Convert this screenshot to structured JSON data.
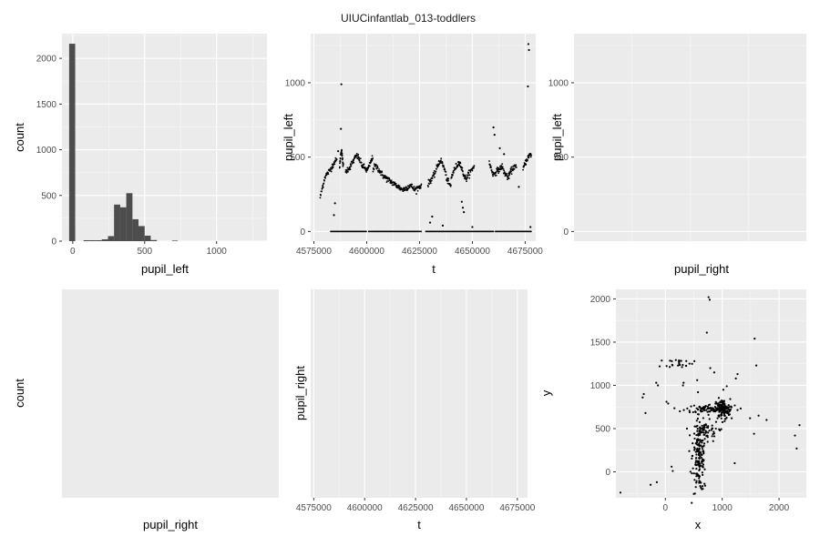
{
  "figure": {
    "title": "UIUCinfantlab_013-toddlers"
  },
  "colors": {
    "panel_bg": "#ebebeb",
    "grid_major": "#ffffff",
    "bar": "#4d4d4d",
    "point": "#000000"
  },
  "chart_data": [
    {
      "id": "hist-pupil-left",
      "type": "bar",
      "xlabel": "pupil_left",
      "ylabel": "count",
      "xlim": [
        -75,
        1350
      ],
      "ylim": [
        0,
        2270
      ],
      "xticks": [
        0,
        500,
        1000
      ],
      "yticks": [
        0,
        500,
        1000,
        1500,
        2000
      ],
      "bins": [
        {
          "x0": -25,
          "x1": 17,
          "count": 2160
        },
        {
          "x0": 75,
          "x1": 117,
          "count": 10
        },
        {
          "x0": 117,
          "x1": 160,
          "count": 10
        },
        {
          "x0": 160,
          "x1": 202,
          "count": 10
        },
        {
          "x0": 202,
          "x1": 245,
          "count": 20
        },
        {
          "x0": 245,
          "x1": 287,
          "count": 55
        },
        {
          "x0": 287,
          "x1": 330,
          "count": 400
        },
        {
          "x0": 330,
          "x1": 372,
          "count": 370
        },
        {
          "x0": 372,
          "x1": 415,
          "count": 525
        },
        {
          "x0": 415,
          "x1": 457,
          "count": 240
        },
        {
          "x0": 457,
          "x1": 500,
          "count": 165
        },
        {
          "x0": 500,
          "x1": 542,
          "count": 60
        },
        {
          "x0": 542,
          "x1": 585,
          "count": 12
        },
        {
          "x0": 690,
          "x1": 730,
          "count": 6
        }
      ]
    },
    {
      "id": "scatter-t-pupil-left",
      "type": "scatter",
      "xlabel": "t",
      "ylabel": "pupil_left",
      "xlim": [
        4573500,
        4680000
      ],
      "ylim": [
        -65,
        1330
      ],
      "xticks": [
        4575000,
        4600000,
        4625000,
        4650000,
        4675000
      ],
      "yticks": [
        0,
        500,
        1000
      ],
      "segments": [
        {
          "t0": 4578000,
          "t1": 4586000,
          "values": [
            230,
            300,
            370,
            390,
            410,
            440,
            470,
            480
          ]
        },
        {
          "t0": 4587200,
          "t1": 4589000,
          "values": [
            440,
            500,
            560,
            480,
            430
          ]
        },
        {
          "t0": 4590000,
          "t1": 4603000,
          "values": [
            400,
            420,
            430,
            460,
            480,
            510,
            500,
            470,
            440,
            430,
            410,
            430,
            470,
            500
          ]
        },
        {
          "t0": 4603000,
          "t1": 4615000,
          "values": [
            420,
            440,
            430,
            410,
            390,
            370,
            360,
            350,
            340,
            330,
            320,
            310,
            300
          ]
        },
        {
          "t0": 4615000,
          "t1": 4626000,
          "values": [
            300,
            290,
            280,
            290,
            300,
            310,
            300,
            280,
            290,
            300,
            310
          ]
        },
        {
          "t0": 4629000,
          "t1": 4640000,
          "values": [
            320,
            340,
            360,
            380,
            420,
            460,
            480,
            450,
            410,
            350,
            320,
            300
          ]
        },
        {
          "t0": 4640000,
          "t1": 4651000,
          "values": [
            360,
            400,
            430,
            450,
            470,
            420,
            380,
            350,
            380,
            400,
            420,
            450
          ]
        },
        {
          "t0": 4658000,
          "t1": 4671000,
          "values": [
            460,
            420,
            380,
            400,
            410,
            420,
            440,
            400,
            380,
            360,
            400,
            420,
            440,
            420
          ]
        },
        {
          "t0": 4674000,
          "t1": 4678000,
          "values": [
            420,
            460,
            490,
            510,
            520
          ]
        }
      ],
      "points": [
        {
          "t": 4585000,
          "v": 190
        },
        {
          "t": 4584500,
          "v": 110
        },
        {
          "t": 4588000,
          "v": 990
        },
        {
          "t": 4587800,
          "v": 690
        },
        {
          "t": 4586500,
          "v": 540
        },
        {
          "t": 4630000,
          "v": 60
        },
        {
          "t": 4631000,
          "v": 100
        },
        {
          "t": 4636000,
          "v": 40
        },
        {
          "t": 4645000,
          "v": 200
        },
        {
          "t": 4645500,
          "v": 160
        },
        {
          "t": 4646000,
          "v": 130
        },
        {
          "t": 4650000,
          "v": 30
        },
        {
          "t": 4660000,
          "v": 700
        },
        {
          "t": 4660500,
          "v": 650
        },
        {
          "t": 4663000,
          "v": 560
        },
        {
          "t": 4665000,
          "v": 520
        },
        {
          "t": 4676500,
          "v": 1260
        },
        {
          "t": 4676800,
          "v": 1220
        },
        {
          "t": 4676300,
          "v": 975
        },
        {
          "t": 4677500,
          "v": 30
        },
        {
          "t": 4672000,
          "v": 300
        }
      ],
      "zero_runs": [
        [
          4583000,
          4600000
        ],
        [
          4601000,
          4626000
        ],
        [
          4628000,
          4660000
        ],
        [
          4661000,
          4678000
        ]
      ]
    },
    {
      "id": "scatter-pupil-right-pupil-left",
      "type": "scatter",
      "xlabel": "pupil_right",
      "ylabel": "pupil_left",
      "ylim": [
        -65,
        1330
      ],
      "yticks": [
        0,
        500,
        1000
      ],
      "points": []
    },
    {
      "id": "hist-pupil-right",
      "type": "bar",
      "xlabel": "pupil_right",
      "ylabel": "count",
      "bins": []
    },
    {
      "id": "scatter-t-pupil-right",
      "type": "scatter",
      "xlabel": "t",
      "ylabel": "pupil_right",
      "xlim": [
        4573500,
        4680000
      ],
      "xticks": [
        4575000,
        4600000,
        4625000,
        4650000,
        4675000
      ],
      "points": []
    },
    {
      "id": "scatter-x-y",
      "type": "scatter",
      "xlabel": "x",
      "ylabel": "y",
      "xlim": [
        -870,
        2480
      ],
      "ylim": [
        -300,
        2110
      ],
      "xticks": [
        0,
        1000,
        2000
      ],
      "yticks": [
        0,
        500,
        1000,
        1500,
        2000
      ],
      "clusters": [
        {
          "cx": 600,
          "cy": 200,
          "sx": 60,
          "sy": 220,
          "n": 170
        },
        {
          "cx": 1000,
          "cy": 720,
          "sx": 70,
          "sy": 60,
          "n": 120
        },
        {
          "cx": 800,
          "cy": 730,
          "sx": 220,
          "sy": 25,
          "n": 80
        },
        {
          "cx": 250,
          "cy": 1260,
          "sx": 120,
          "sy": 25,
          "n": 25
        },
        {
          "cx": 700,
          "cy": 470,
          "sx": 120,
          "sy": 60,
          "n": 40
        }
      ],
      "points": [
        {
          "x": -790,
          "y": -240
        },
        {
          "x": -400,
          "y": 860
        },
        {
          "x": -380,
          "y": 900
        },
        {
          "x": -350,
          "y": 680
        },
        {
          "x": -260,
          "y": -150
        },
        {
          "x": -130,
          "y": 1000
        },
        {
          "x": -160,
          "y": 1030
        },
        {
          "x": -150,
          "y": -120
        },
        {
          "x": -100,
          "y": 1220
        },
        {
          "x": 310,
          "y": 1000
        },
        {
          "x": 320,
          "y": 1030
        },
        {
          "x": 560,
          "y": 1060
        },
        {
          "x": 760,
          "y": 2020
        },
        {
          "x": 780,
          "y": 1990
        },
        {
          "x": 730,
          "y": 1610
        },
        {
          "x": 790,
          "y": 1200
        },
        {
          "x": 860,
          "y": 1150
        },
        {
          "x": 1240,
          "y": 1080
        },
        {
          "x": 1270,
          "y": 1130
        },
        {
          "x": 1570,
          "y": 1540
        },
        {
          "x": 1600,
          "y": 1230
        },
        {
          "x": 1490,
          "y": 620
        },
        {
          "x": 1560,
          "y": 440
        },
        {
          "x": 1640,
          "y": 650
        },
        {
          "x": 1780,
          "y": 600
        },
        {
          "x": 2360,
          "y": 540
        },
        {
          "x": 2280,
          "y": 420
        },
        {
          "x": 2310,
          "y": 270
        },
        {
          "x": 1220,
          "y": 100
        },
        {
          "x": 110,
          "y": 60
        },
        {
          "x": 130,
          "y": 10
        },
        {
          "x": 420,
          "y": 240
        },
        {
          "x": 480,
          "y": 330
        },
        {
          "x": 380,
          "y": 500
        },
        {
          "x": 640,
          "y": -200
        },
        {
          "x": 700,
          "y": -160
        },
        {
          "x": 20,
          "y": 810
        },
        {
          "x": 50,
          "y": 790
        },
        {
          "x": 1020,
          "y": 950
        },
        {
          "x": 1080,
          "y": 990
        }
      ]
    }
  ]
}
